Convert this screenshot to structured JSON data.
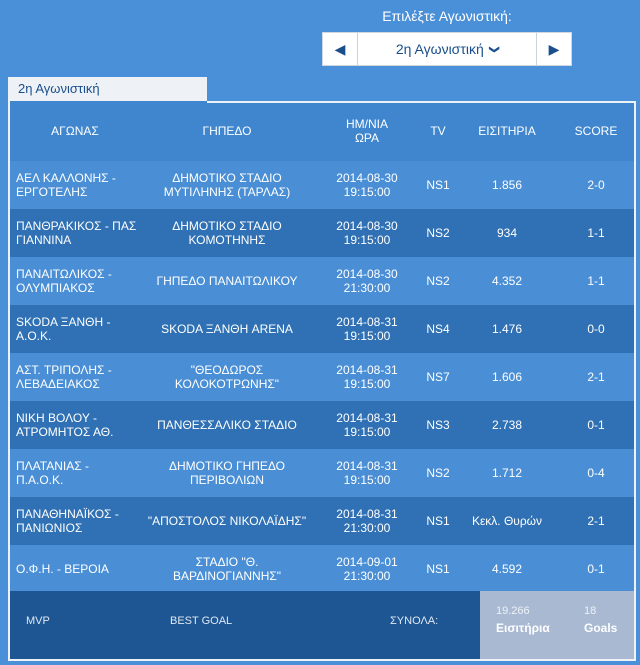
{
  "selector": {
    "label": "Επιλέξτε Αγωνιστική:",
    "value": "2η Αγωνιστική",
    "prev_icon": "◀",
    "next_icon": "▶",
    "dropdown_icon": "❯"
  },
  "tab": {
    "label": "2η Αγωνιστική"
  },
  "table": {
    "headers": {
      "match": "ΑΓΩΝΑΣ",
      "stadium": "ΓΗΠΕΔΟ",
      "datetime_line1": "ΗΜ/ΝΙΑ",
      "datetime_line2": "ΩΡΑ",
      "tv": "TV",
      "tickets": "ΕΙΣΙΤΗΡΙΑ",
      "score": "SCORE"
    },
    "rows": [
      {
        "match": "ΑΕΛ ΚΑΛΛΟΝΗΣ - ΕΡΓΟΤΕΛΗΣ",
        "stadium": "ΔΗΜΟΤΙΚΟ ΣΤΑΔΙΟ ΜΥΤΙΛΗΝΗΣ (ΤΑΡΛΑΣ)",
        "date": "2014-08-30",
        "time": "19:15:00",
        "tv": "NS1",
        "tickets": "1.856",
        "score": "2-0"
      },
      {
        "match": "ΠΑΝΘΡΑΚΙΚΟΣ - ΠΑΣ ΓΙΑΝΝΙΝΑ",
        "stadium": "ΔΗΜΟΤΙΚΟ ΣΤΑΔΙΟ ΚΟΜΟΤΗΝΗΣ",
        "date": "2014-08-30",
        "time": "19:15:00",
        "tv": "NS2",
        "tickets": "934",
        "score": "1-1"
      },
      {
        "match": "ΠΑΝΑΙΤΩΛΙΚΟΣ - ΟΛΥΜΠΙΑΚΟΣ",
        "stadium": "ΓΗΠΕΔΟ ΠΑΝΑΙΤΩΛΙΚΟΥ",
        "date": "2014-08-30",
        "time": "21:30:00",
        "tv": "NS2",
        "tickets": "4.352",
        "score": "1-1"
      },
      {
        "match": "SKODA ΞΑΝΘΗ - Α.Ο.Κ.",
        "stadium": "SKODA ΞΑΝΘΗ ARENA",
        "date": "2014-08-31",
        "time": "19:15:00",
        "tv": "NS4",
        "tickets": "1.476",
        "score": "0-0"
      },
      {
        "match": "ΑΣΤ. ΤΡΙΠΟΛΗΣ - ΛΕΒΑΔΕΙΑΚΟΣ",
        "stadium": "\"ΘΕΟΔΩΡΟΣ ΚΟΛΟΚΟΤΡΩΝΗΣ\"",
        "date": "2014-08-31",
        "time": "19:15:00",
        "tv": "NS7",
        "tickets": "1.606",
        "score": "2-1"
      },
      {
        "match": "ΝΙΚΗ ΒΟΛΟΥ - ΑΤΡΟΜΗΤΟΣ ΑΘ.",
        "stadium": "ΠΑΝΘΕΣΣΑΛΙΚΟ ΣΤΑΔΙΟ",
        "date": "2014-08-31",
        "time": "19:15:00",
        "tv": "NS3",
        "tickets": "2.738",
        "score": "0-1"
      },
      {
        "match": "ΠΛΑΤΑΝΙΑΣ - Π.Α.Ο.Κ.",
        "stadium": "ΔΗΜΟΤΙΚΟ ΓΗΠΕΔΟ ΠΕΡΙΒΟΛΙΩΝ",
        "date": "2014-08-31",
        "time": "19:15:00",
        "tv": "NS2",
        "tickets": "1.712",
        "score": "0-4"
      },
      {
        "match": "ΠΑΝΑΘΗΝΑΪΚΟΣ - ΠΑΝΙΩΝΙΟΣ",
        "stadium": "\"ΑΠΟΣΤΟΛΟΣ ΝΙΚΟΛΑΪΔΗΣ\"",
        "date": "2014-08-31",
        "time": "21:30:00",
        "tv": "NS1",
        "tickets": "Κεκλ. Θυρών",
        "score": "2-1"
      },
      {
        "match": "Ο.Φ.Η. - ΒΕΡΟΙΑ",
        "stadium": "ΣΤΑΔΙΟ \"Θ. ΒΑΡΔΙΝΟΓΙΑΝΝΗΣ\"",
        "date": "2014-09-01",
        "time": "21:30:00",
        "tv": "NS1",
        "tickets": "4.592",
        "score": "0-1"
      }
    ]
  },
  "footer": {
    "mvp": "MVP",
    "best_goal": "BEST GOAL",
    "totals_label": "ΣΥΝΟΛΑ:",
    "tickets_total": "19.266",
    "tickets_label": "Εισιτήρια",
    "goals_total": "18",
    "goals_label": "Goals"
  },
  "colors": {
    "background": "#4a90d9",
    "row_light": "#4a8fd6",
    "row_dark": "#2f71b4",
    "footer_dark": "#1d5693",
    "footer_totals": "#a9b9d2"
  }
}
